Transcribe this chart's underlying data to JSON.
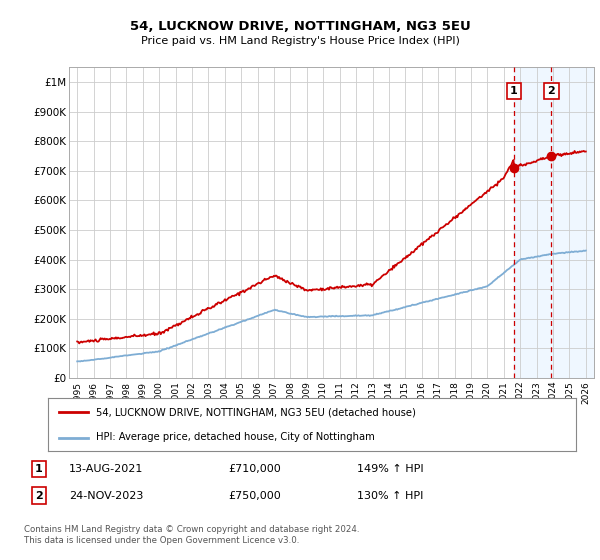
{
  "title": "54, LUCKNOW DRIVE, NOTTINGHAM, NG3 5EU",
  "subtitle": "Price paid vs. HM Land Registry's House Price Index (HPI)",
  "ylabel_ticks": [
    "£0",
    "£100K",
    "£200K",
    "£300K",
    "£400K",
    "£500K",
    "£600K",
    "£700K",
    "£800K",
    "£900K",
    "£1M"
  ],
  "ytick_values": [
    0,
    100000,
    200000,
    300000,
    400000,
    500000,
    600000,
    700000,
    800000,
    900000,
    1000000
  ],
  "ylim": [
    0,
    1050000
  ],
  "xlim_start": 1994.5,
  "xlim_end": 2026.5,
  "xtick_years": [
    1995,
    1996,
    1997,
    1998,
    1999,
    2000,
    2001,
    2002,
    2003,
    2004,
    2005,
    2006,
    2007,
    2008,
    2009,
    2010,
    2011,
    2012,
    2013,
    2014,
    2015,
    2016,
    2017,
    2018,
    2019,
    2020,
    2021,
    2022,
    2023,
    2024,
    2025,
    2026
  ],
  "red_line_color": "#cc0000",
  "blue_line_color": "#7eadd4",
  "sale1_x": 2021.617,
  "sale1_y": 710000,
  "sale2_x": 2023.9,
  "sale2_y": 750000,
  "vline1_x": 2021.617,
  "vline2_x": 2023.9,
  "legend_line1": "54, LUCKNOW DRIVE, NOTTINGHAM, NG3 5EU (detached house)",
  "legend_line2": "HPI: Average price, detached house, City of Nottingham",
  "table_rows": [
    {
      "num": "1",
      "date": "13-AUG-2021",
      "price": "£710,000",
      "hpi": "149% ↑ HPI"
    },
    {
      "num": "2",
      "date": "24-NOV-2023",
      "price": "£750,000",
      "hpi": "130% ↑ HPI"
    }
  ],
  "footnote": "Contains HM Land Registry data © Crown copyright and database right 2024.\nThis data is licensed under the Open Government Licence v3.0.",
  "background_color": "#ffffff",
  "plot_bg_color": "#ffffff",
  "grid_color": "#cccccc",
  "shade_color": "#ddeeff"
}
